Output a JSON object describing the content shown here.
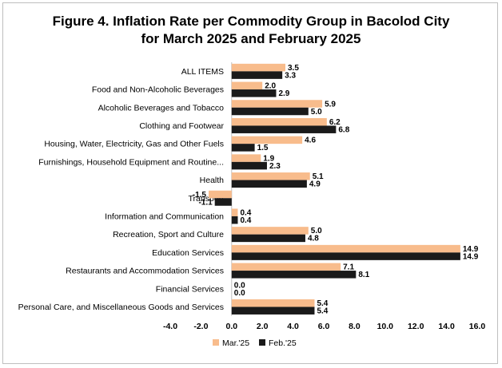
{
  "chart_data": {
    "type": "bar",
    "orientation": "horizontal",
    "title": "Figure 4. Inflation Rate per Commodity Group in Bacolod City for March 2025 and February 2025",
    "title_lines": [
      "Figure 4. Inflation Rate per Commodity Group in Bacolod City",
      "for March 2025 and February 2025"
    ],
    "categories": [
      "ALL ITEMS",
      "Food and Non-Alcoholic Beverages",
      "Alcoholic Beverages and Tobacco",
      "Clothing and Footwear",
      "Housing, Water, Electricity, Gas and Other Fuels",
      "Furnishings, Household Equipment and Routine...",
      "Health",
      "Transport",
      "Information and Communication",
      "Recreation, Sport and Culture",
      "Education Services",
      "Restaurants and Accommodation Services",
      "Financial Services",
      "Personal Care, and Miscellaneous Goods and Services"
    ],
    "series": [
      {
        "name": "Mar.'25",
        "color": "#f8bc8c",
        "values": [
          3.5,
          2.0,
          5.9,
          6.2,
          4.6,
          1.9,
          5.1,
          -1.5,
          0.4,
          5.0,
          14.9,
          7.1,
          0.0,
          5.4
        ]
      },
      {
        "name": "Feb.'25",
        "color": "#1a1a1a",
        "values": [
          3.3,
          2.9,
          5.0,
          6.8,
          1.5,
          2.3,
          4.9,
          -1.1,
          0.4,
          4.8,
          14.9,
          8.1,
          0.0,
          5.4
        ]
      }
    ],
    "xlim": [
      -4.0,
      16.0
    ],
    "xticks": [
      "-4.0",
      "-2.0",
      "0.0",
      "2.0",
      "4.0",
      "6.0",
      "8.0",
      "10.0",
      "12.0",
      "14.0",
      "16.0"
    ],
    "grid": false,
    "legend": "bottom"
  }
}
